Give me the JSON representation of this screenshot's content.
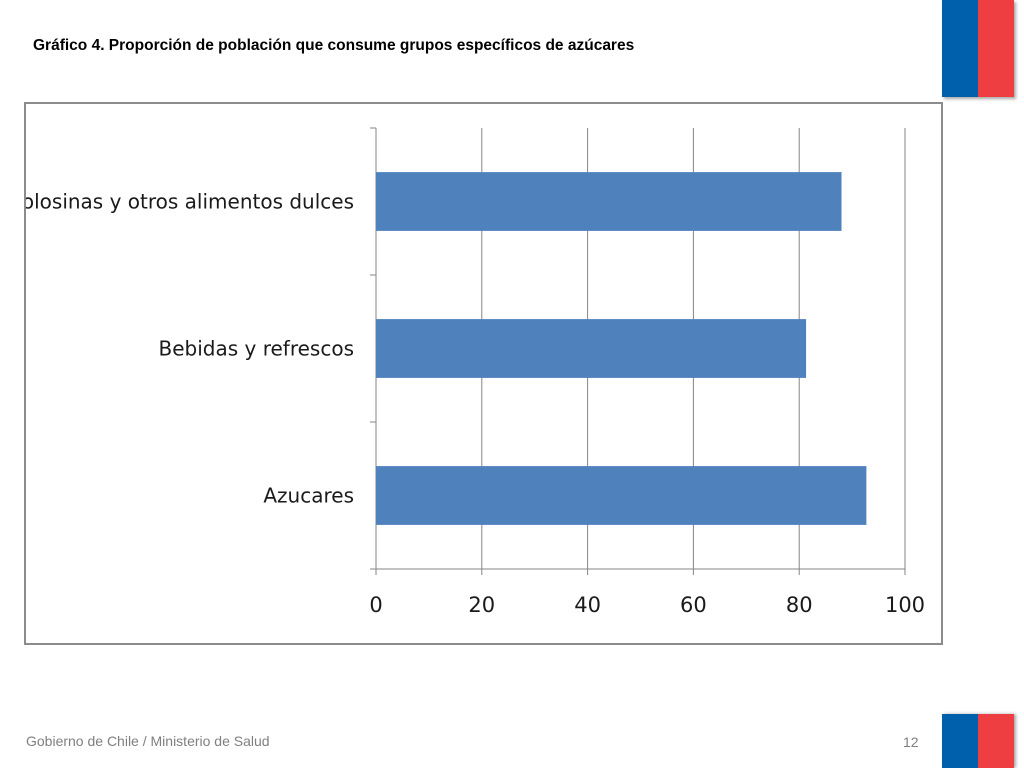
{
  "slide": {
    "title": "Gráfico 4. Proporción de población que consume grupos específicos de azúcares",
    "footer": "Gobierno de Chile / Ministerio de Salud",
    "page_number": "12"
  },
  "colors": {
    "bar": "#4f81bd",
    "flag_blue": "#0060ac",
    "flag_red": "#ef3e42",
    "gridline": "#868686",
    "frame": "#8c8c8c"
  },
  "chart_data": {
    "type": "bar",
    "orientation": "horizontal",
    "categories": [
      "Golosinas y otros alimentos dulces",
      "Bebidas y refrescos",
      "Azucares"
    ],
    "values": [
      88,
      81.3,
      92.7
    ],
    "xlim": [
      0,
      100
    ],
    "xticks": [
      0,
      20,
      40,
      60,
      80,
      100
    ],
    "grid": true,
    "legend": "none"
  }
}
